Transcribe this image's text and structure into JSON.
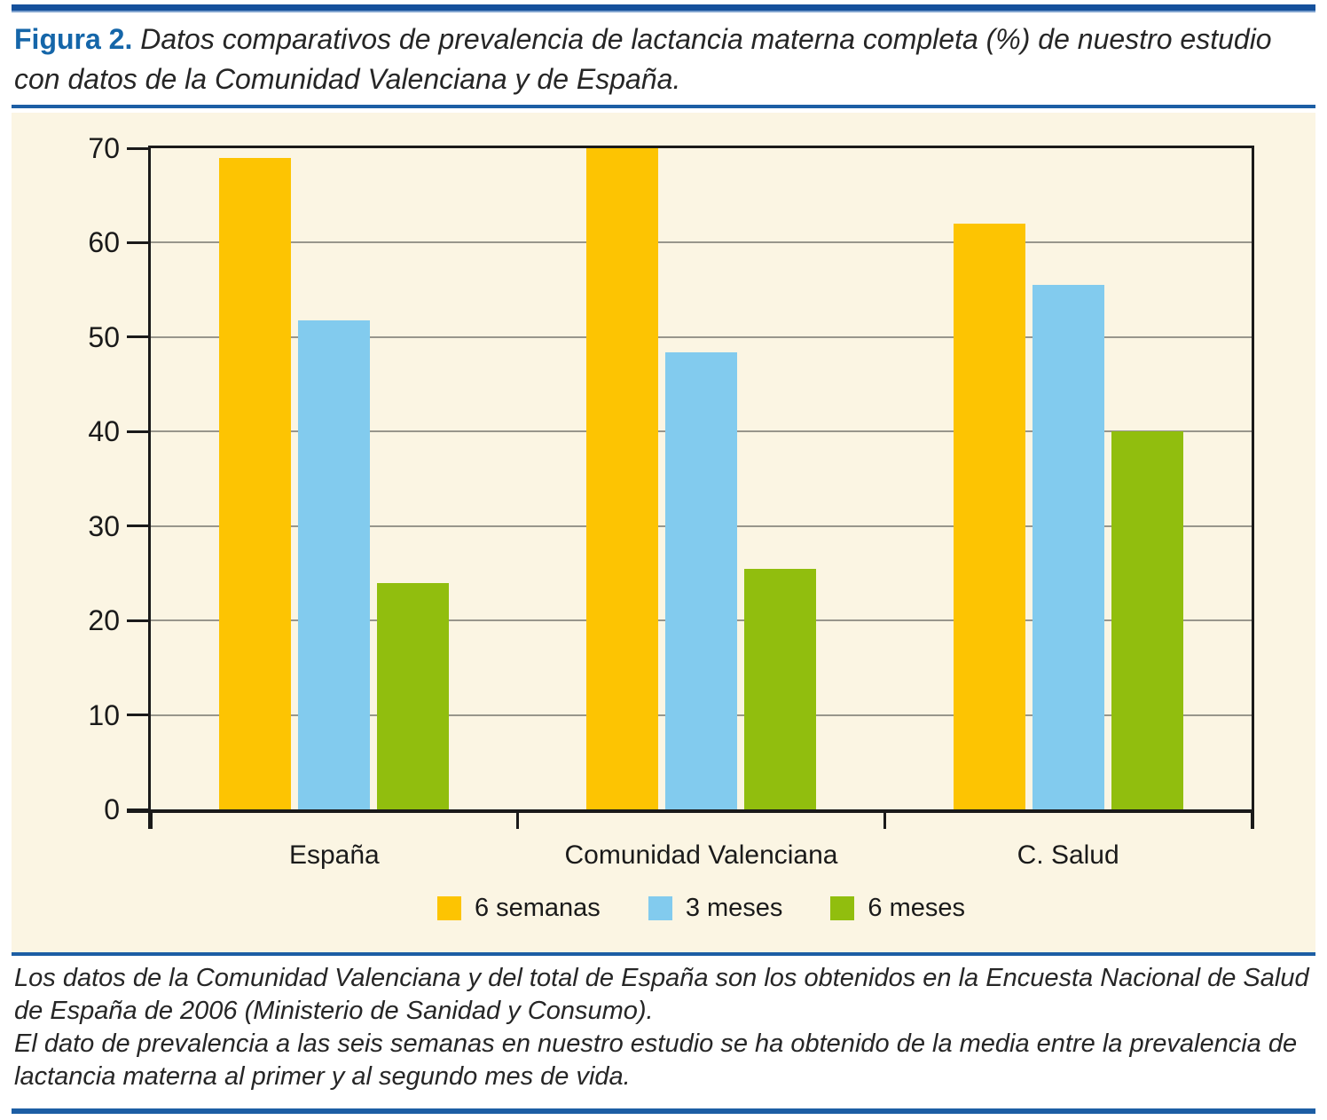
{
  "figure": {
    "label": "Figura 2.",
    "caption": "Datos comparativos de prevalencia de lactancia materna completa (%) de nuestro estudio con datos de la Comunidad Valenciana y de España."
  },
  "chart_data": {
    "type": "bar",
    "categories": [
      "España",
      "Comunidad Valenciana",
      "C. Salud"
    ],
    "series": [
      {
        "name": "6 semanas",
        "color": "#fdc402",
        "values": [
          69,
          70,
          62
        ]
      },
      {
        "name": "3 meses",
        "color": "#82cbee",
        "values": [
          51.8,
          48.4,
          55.5
        ]
      },
      {
        "name": "6 meses",
        "color": "#91be0e",
        "values": [
          24,
          25.5,
          40
        ]
      }
    ],
    "title": "",
    "xlabel": "",
    "ylabel": "",
    "ylim": [
      0,
      70
    ],
    "y_ticks": [
      0,
      10,
      20,
      30,
      40,
      50,
      60,
      70
    ],
    "grid": true,
    "legend_position": "bottom",
    "plot_background": "#fbf5e3"
  },
  "notes": [
    "Los datos de la Comunidad Valenciana y del total de España son los obtenidos en la Encuesta Nacional de Salud de España de 2006 (Ministerio de Sanidad y Consumo).",
    "El dato de prevalencia a las seis semanas en nuestro estudio se ha obtenido de la media entre la prevalencia de lactancia materna al primer y al segundo mes de vida."
  ],
  "colors": {
    "accent_rule_blue": "#1c5ea4",
    "figure_label_blue": "#1566a9",
    "panel_cream": "#fbf5e3"
  }
}
